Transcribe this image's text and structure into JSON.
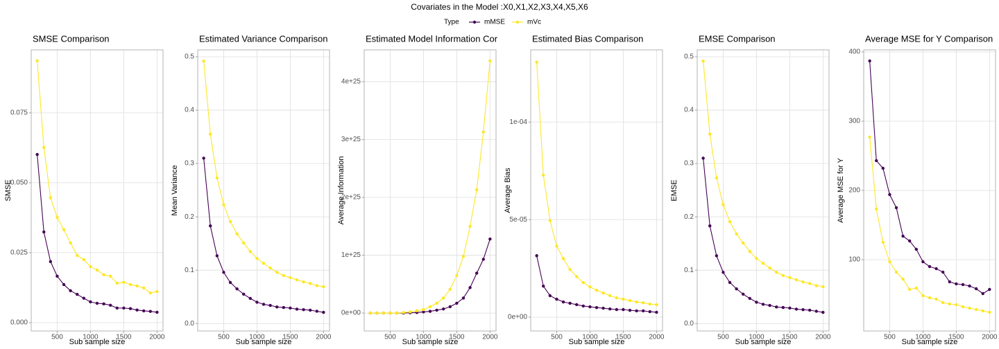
{
  "title": "Covariates in the Model :X0,X1,X2,X3,X4,X5,X6",
  "legend_title": "Type",
  "chart_data": [
    {
      "type": "line",
      "title": "SMSE Comparison",
      "xlabel": "Sub sample size",
      "ylabel": "SMSE",
      "x": [
        200,
        300,
        400,
        500,
        600,
        700,
        800,
        900,
        1000,
        1100,
        1200,
        1300,
        1400,
        1500,
        1600,
        1700,
        1800,
        1900,
        2000
      ],
      "xlim": [
        110,
        2090
      ],
      "xticks": [
        500,
        1000,
        1500,
        2000
      ],
      "ylim": [
        -0.003,
        0.0975
      ],
      "yticks": [
        {
          "value": 0,
          "label": "0.000"
        },
        {
          "value": 0.025,
          "label": "0.025"
        },
        {
          "value": 0.05,
          "label": "0.050"
        },
        {
          "value": 0.075,
          "label": "0.075"
        }
      ],
      "grid": true,
      "series": [
        {
          "name": "mMSE",
          "color": "#440154",
          "values": [
            0.0601,
            0.0324,
            0.0218,
            0.0166,
            0.0136,
            0.0114,
            0.0101,
            0.0087,
            0.0074,
            0.0069,
            0.0067,
            0.0062,
            0.0052,
            0.0052,
            0.005,
            0.0045,
            0.0042,
            0.004,
            0.0037
          ]
        },
        {
          "name": "mVc",
          "color": "#FDE725",
          "values": [
            0.0936,
            0.0626,
            0.0446,
            0.0376,
            0.0332,
            0.0285,
            0.024,
            0.0225,
            0.02,
            0.0188,
            0.0171,
            0.0166,
            0.0141,
            0.0144,
            0.0136,
            0.0131,
            0.0124,
            0.0106,
            0.0111
          ]
        }
      ]
    },
    {
      "type": "line",
      "title": "Estimated Variance Comparison",
      "xlabel": "Sub sample size",
      "ylabel": "Mean Variance",
      "x": [
        200,
        300,
        400,
        500,
        600,
        700,
        800,
        900,
        1000,
        1100,
        1200,
        1300,
        1400,
        1500,
        1600,
        1700,
        1800,
        1900,
        2000
      ],
      "xlim": [
        110,
        2090
      ],
      "xticks": [
        500,
        1000,
        1500,
        2000
      ],
      "ylim": [
        -0.014,
        0.513
      ],
      "yticks": [
        {
          "value": 0,
          "label": "0.0"
        },
        0.1,
        0.2,
        0.3,
        0.4,
        0.5
      ],
      "grid": true,
      "series": [
        {
          "name": "mMSE",
          "color": "#440154",
          "values": [
            0.31,
            0.183,
            0.127,
            0.096,
            0.077,
            0.065,
            0.055,
            0.047,
            0.04,
            0.036,
            0.034,
            0.031,
            0.03,
            0.029,
            0.027,
            0.026,
            0.025,
            0.023,
            0.021
          ]
        },
        {
          "name": "mVc",
          "color": "#FDE725",
          "values": [
            0.492,
            0.355,
            0.273,
            0.223,
            0.191,
            0.168,
            0.151,
            0.135,
            0.122,
            0.113,
            0.104,
            0.096,
            0.09,
            0.086,
            0.082,
            0.078,
            0.075,
            0.071,
            0.069
          ]
        }
      ]
    },
    {
      "type": "line",
      "title": "Estimated Model Information Cor",
      "xlabel": "Sub sample size",
      "ylabel": "Average Information",
      "x": [
        200,
        300,
        400,
        500,
        600,
        700,
        800,
        900,
        1000,
        1100,
        1200,
        1300,
        1400,
        1500,
        1600,
        1700,
        1800,
        1900,
        2000
      ],
      "xlim": [
        110,
        2090
      ],
      "xticks": [
        500,
        1000,
        1500,
        2000
      ],
      "ylim": [
        -3.1e+24,
        4.55e+25
      ],
      "yticks": [
        {
          "value": 0,
          "label": "0e+00"
        },
        {
          "value": 1e+25,
          "label": "1e+25"
        },
        {
          "value": 2e+25,
          "label": "2e+25"
        },
        {
          "value": 3e+25,
          "label": "3e+25"
        },
        {
          "value": 4e+25,
          "label": "4e+25"
        }
      ],
      "grid": true,
      "series": [
        {
          "name": "mMSE",
          "color": "#440154",
          "values": [
            0,
            0,
            0,
            0,
            0,
            0,
            5e+22,
            1e+23,
            2e+23,
            3e+23,
            5e+23,
            7e+23,
            1.1e+24,
            1.7e+24,
            2.6e+24,
            4.4e+24,
            6.9e+24,
            9.3e+24,
            1.28e+25
          ]
        },
        {
          "name": "mVc",
          "color": "#FDE725",
          "values": [
            0,
            0,
            0,
            0,
            0,
            1e+23,
            2e+23,
            4e+23,
            6e+23,
            1.1e+24,
            1.7e+24,
            2.6e+24,
            4.1e+24,
            6.5e+24,
            9.8e+24,
            1.5e+25,
            2.13e+25,
            3.13e+25,
            4.36e+25
          ]
        }
      ]
    },
    {
      "type": "line",
      "title": "Estimated Bias Comparison",
      "xlabel": "Sub sample size",
      "ylabel": "Average Bias",
      "x": [
        200,
        300,
        400,
        500,
        600,
        700,
        800,
        900,
        1000,
        1100,
        1200,
        1300,
        1400,
        1500,
        1600,
        1700,
        1800,
        1900,
        2000
      ],
      "xlim": [
        110,
        2090
      ],
      "xticks": [
        500,
        1000,
        1500,
        2000
      ],
      "ylim": [
        -7.1e-06,
        0.000137
      ],
      "yticks": [
        {
          "value": 0,
          "label": "0e+00"
        },
        {
          "value": 5e-05,
          "label": "5e-05"
        },
        {
          "value": 0.0001,
          "label": "1e-04"
        }
      ],
      "grid": true,
      "series": [
        {
          "name": "mMSE",
          "color": "#440154",
          "values": [
            3.15e-05,
            1.59e-05,
            1.1e-05,
            9.2e-06,
            7.8e-06,
            7.1e-06,
            6.4e-06,
            5.7e-06,
            5.3e-06,
            4.9e-06,
            4.6e-06,
            4.2e-06,
            3.9e-06,
            3.9e-06,
            3.5e-06,
            3.2e-06,
            3.2e-06,
            2.8e-06,
            2.5e-06
          ]
        },
        {
          "name": "mVc",
          "color": "#FDE725",
          "values": [
            0.0001307,
            7.28e-05,
            4.95e-05,
            3.64e-05,
            3e-05,
            2.44e-05,
            2.08e-05,
            1.77e-05,
            1.55e-05,
            1.38e-05,
            1.24e-05,
            1.1e-05,
            9.9e-06,
            9.2e-06,
            8.5e-06,
            7.8e-06,
            7.4e-06,
            6.7e-06,
            6.4e-06
          ]
        }
      ]
    },
    {
      "type": "line",
      "title": "EMSE Comparison",
      "xlabel": "Sub sample size",
      "ylabel": "EMSE",
      "x": [
        200,
        300,
        400,
        500,
        600,
        700,
        800,
        900,
        1000,
        1100,
        1200,
        1300,
        1400,
        1500,
        1600,
        1700,
        1800,
        1900,
        2000
      ],
      "xlim": [
        110,
        2090
      ],
      "xticks": [
        500,
        1000,
        1500,
        2000
      ],
      "ylim": [
        -0.014,
        0.513
      ],
      "yticks": [
        {
          "value": 0,
          "label": "0.0"
        },
        0.1,
        0.2,
        0.3,
        0.4,
        0.5
      ],
      "grid": true,
      "series": [
        {
          "name": "mMSE",
          "color": "#440154",
          "values": [
            0.31,
            0.183,
            0.127,
            0.096,
            0.077,
            0.065,
            0.055,
            0.047,
            0.04,
            0.036,
            0.034,
            0.031,
            0.03,
            0.029,
            0.027,
            0.026,
            0.025,
            0.023,
            0.021
          ]
        },
        {
          "name": "mVc",
          "color": "#FDE725",
          "values": [
            0.492,
            0.355,
            0.273,
            0.223,
            0.191,
            0.168,
            0.151,
            0.135,
            0.122,
            0.113,
            0.104,
            0.096,
            0.09,
            0.086,
            0.082,
            0.078,
            0.075,
            0.071,
            0.069
          ]
        }
      ]
    },
    {
      "type": "line",
      "title": "Average MSE for Y Comparison",
      "xlabel": "Sub sample size",
      "ylabel": "Average MSE for Y",
      "x": [
        200,
        300,
        400,
        500,
        600,
        700,
        800,
        900,
        1000,
        1100,
        1200,
        1300,
        1400,
        1500,
        1600,
        1700,
        1800,
        1900,
        2000
      ],
      "xlim": [
        110,
        2090
      ],
      "xticks": [
        500,
        1000,
        1500,
        2000
      ],
      "ylim": [
        -3,
        403
      ],
      "yticks": [
        100,
        200,
        300,
        400
      ],
      "grid": true,
      "series": [
        {
          "name": "mMSE",
          "color": "#440154",
          "values": [
            387,
            243,
            232,
            194,
            175,
            134,
            127,
            115,
            97,
            90,
            87,
            82,
            68,
            65,
            64,
            62,
            58,
            51,
            57
          ]
        },
        {
          "name": "mVc",
          "color": "#FDE725",
          "values": [
            277,
            173,
            125,
            97,
            82,
            72,
            57,
            59,
            48,
            45,
            43,
            38,
            36,
            35,
            32,
            30,
            28,
            26,
            24
          ]
        }
      ]
    }
  ]
}
